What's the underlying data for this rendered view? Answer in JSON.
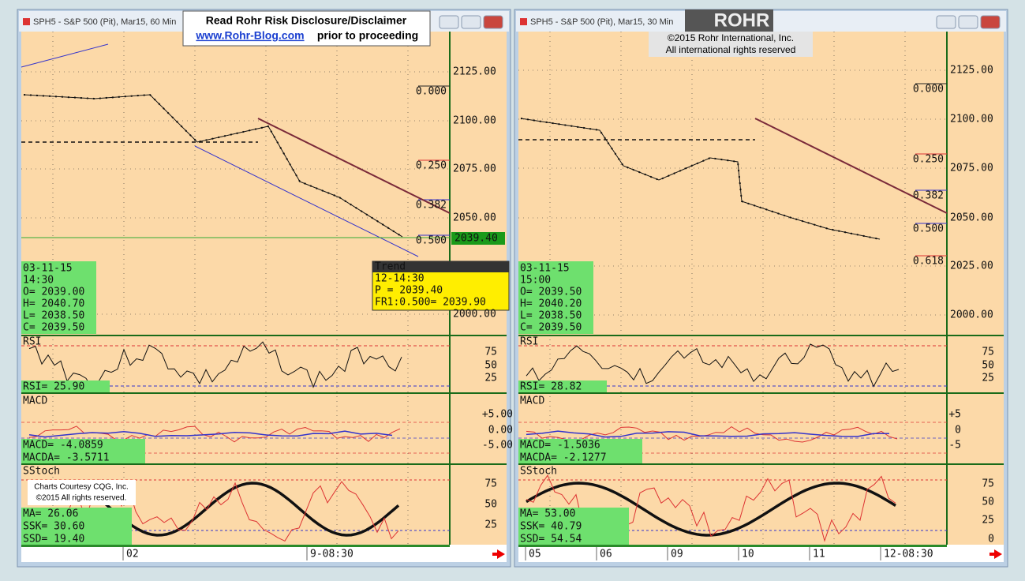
{
  "banner": {
    "line1": "Read Rohr Risk Disclosure/Disclaimer",
    "link": "www.Rohr-Blog.com",
    "line2": "prior to proceeding"
  },
  "logo": "ROHR",
  "copyright": [
    "©2015 Rohr International, Inc.",
    "All international rights reserved"
  ],
  "credit": [
    "Charts Courtesy CQG, Inc.",
    "©2015 All rights reserved."
  ],
  "windows": [
    {
      "title": "SPH5 - S&P 500 (Pit), Mar15, 60 Min",
      "price_ticks": [
        "2125.00",
        "2100.00",
        "2075.00",
        "2050.00",
        "2000.00"
      ],
      "last_price": "2039.40",
      "fib_labels": [
        "0.000",
        "0.250",
        "0.382",
        "0.500"
      ],
      "ohlc": [
        "03-11-15",
        "14:30",
        "O= 2039.00",
        "H= 2040.70",
        "L= 2038.50",
        "C= 2039.50"
      ],
      "trend": [
        "Trend",
        "12-14:30",
        "P         = 2039.40",
        "FR1:0.500= 2039.90"
      ],
      "rsi": {
        "label": "RSI",
        "values": [
          "RSI=   25.90"
        ],
        "ticks": [
          "75",
          "50",
          "25"
        ]
      },
      "macd": {
        "label": "MACD",
        "values": [
          "MACD=   -4.0859",
          "MACDA=  -3.5711"
        ],
        "ticks": [
          "+5.00",
          "0.00",
          "-5.00"
        ]
      },
      "stoch": {
        "label": "SStoch",
        "values": [
          "MA=      26.06",
          "SSK=     30.60",
          "SSD=     19.40"
        ],
        "ticks": [
          "75",
          "50",
          "25"
        ]
      },
      "time_labels": [
        "02",
        "9-08:30"
      ]
    },
    {
      "title": "SPH5 - S&P 500 (Pit), Mar15, 30 Min",
      "price_ticks": [
        "2125.00",
        "2100.00",
        "2075.00",
        "2050.00",
        "2025.00",
        "2000.00"
      ],
      "fib_labels": [
        "0.000",
        "0.250",
        "0.382",
        "0.500",
        "0.618"
      ],
      "ohlc": [
        "03-11-15",
        "15:00",
        "O= 2039.50",
        "H= 2040.20",
        "L= 2038.50",
        "C= 2039.50"
      ],
      "rsi": {
        "label": "RSI",
        "values": [
          "RSI=   28.82"
        ],
        "ticks": [
          "75",
          "50",
          "25"
        ]
      },
      "macd": {
        "label": "MACD",
        "values": [
          "MACD=   -1.5036",
          "MACDA=  -2.1277"
        ],
        "ticks": [
          "+5",
          "0",
          "-5"
        ]
      },
      "stoch": {
        "label": "SStoch",
        "values": [
          "MA=      53.00",
          "SSK=     40.79",
          "SSD=     54.54"
        ],
        "ticks": [
          "75",
          "50",
          "25",
          "0"
        ]
      },
      "time_labels": [
        "05",
        "06",
        "09",
        "10",
        "11",
        "12-08:30"
      ]
    }
  ]
}
